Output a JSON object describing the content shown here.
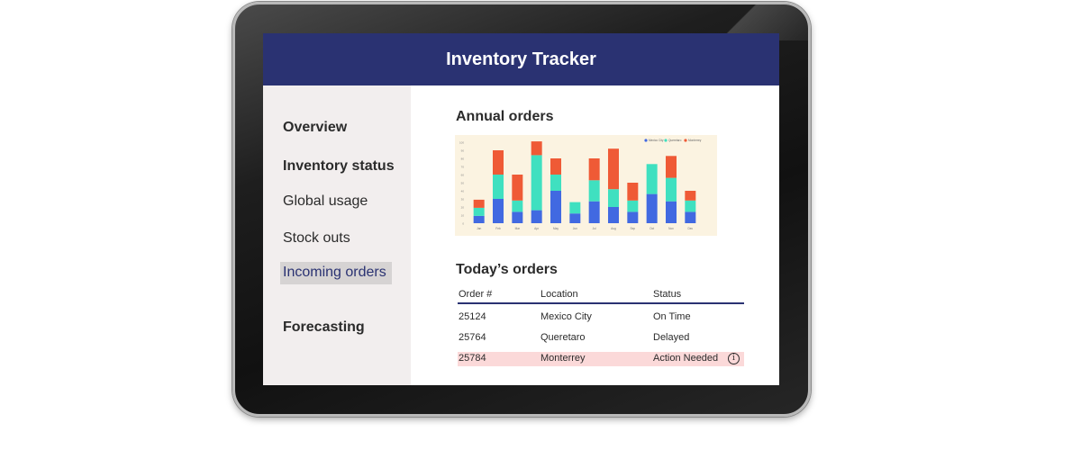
{
  "app": {
    "title": "Inventory Tracker"
  },
  "sidebar": {
    "items": [
      {
        "label": "Overview"
      },
      {
        "label": "Inventory status"
      },
      {
        "label": "Global usage"
      },
      {
        "label": "Stock outs"
      },
      {
        "label": "Incoming orders"
      },
      {
        "label": "Forecasting"
      }
    ],
    "selected": "Incoming orders"
  },
  "main": {
    "annual_title": "Annual orders",
    "today_title": "Today’s orders"
  },
  "chart_data": {
    "type": "bar",
    "stacked": true,
    "categories": [
      "Jan",
      "Feb",
      "Mar",
      "Apr",
      "May",
      "Jun",
      "Jul",
      "Aug",
      "Sep",
      "Oct",
      "Nov",
      "Dec"
    ],
    "series": [
      {
        "name": "Mexico City",
        "color": "#4169e1",
        "values": [
          9,
          30,
          14,
          16,
          40,
          12,
          27,
          20,
          14,
          36,
          27,
          14
        ]
      },
      {
        "name": "Queretaro",
        "color": "#3fe0c0",
        "values": [
          10,
          30,
          14,
          68,
          20,
          14,
          26,
          22,
          14,
          37,
          29,
          14
        ]
      },
      {
        "name": "Monterrey",
        "color": "#ef5a36",
        "values": [
          10,
          30,
          32,
          17,
          20,
          0,
          27,
          50,
          22,
          0,
          27,
          12
        ]
      }
    ],
    "ylim": [
      0,
      100
    ],
    "grid": false,
    "legend": "top-right"
  },
  "orders_table": {
    "columns": [
      "Order #",
      "Location",
      "Status"
    ],
    "rows": [
      {
        "order": "25124",
        "location": "Mexico City",
        "status": "On Time",
        "highlight": false
      },
      {
        "order": "25764",
        "location": "Queretaro",
        "status": "Delayed",
        "highlight": false
      },
      {
        "order": "25784",
        "location": "Monterrey",
        "status": "Action Needed",
        "highlight": true,
        "icon": "info-icon"
      }
    ]
  },
  "colors": {
    "header": "#2a3272",
    "alert_row": "#fbd9d9",
    "sidebar": "#f2eeee"
  }
}
